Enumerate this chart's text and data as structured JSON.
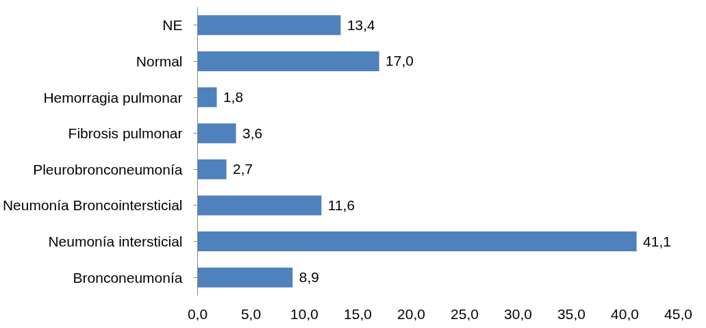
{
  "chart_data": {
    "type": "bar",
    "orientation": "horizontal",
    "categories": [
      "NE",
      "Normal",
      "Hemorragia pulmonar",
      "Fibrosis pulmonar",
      "Pleurobronconeumonía",
      "Neumonía Broncointersticial",
      "Neumonía intersticial",
      "Bronconeumonía"
    ],
    "values": [
      13.4,
      17.0,
      1.8,
      3.6,
      2.7,
      11.6,
      41.1,
      8.9
    ],
    "value_labels": [
      "13,4",
      "17,0",
      "1,8",
      "3,6",
      "2,7",
      "11,6",
      "41,1",
      "8,9"
    ],
    "color": "#4f81bd",
    "xlim": [
      0,
      45
    ],
    "xticks": [
      {
        "value": 0,
        "label": "0,0"
      },
      {
        "value": 5,
        "label": "5,0"
      },
      {
        "value": 10,
        "label": "10,0"
      },
      {
        "value": 15,
        "label": "15,0"
      },
      {
        "value": 20,
        "label": "20,0"
      },
      {
        "value": 25,
        "label": "25,0"
      },
      {
        "value": 30,
        "label": "30,0"
      },
      {
        "value": 35,
        "label": "35,0"
      },
      {
        "value": 40,
        "label": "40,0"
      },
      {
        "value": 45,
        "label": "45,0"
      }
    ],
    "grid": false
  }
}
